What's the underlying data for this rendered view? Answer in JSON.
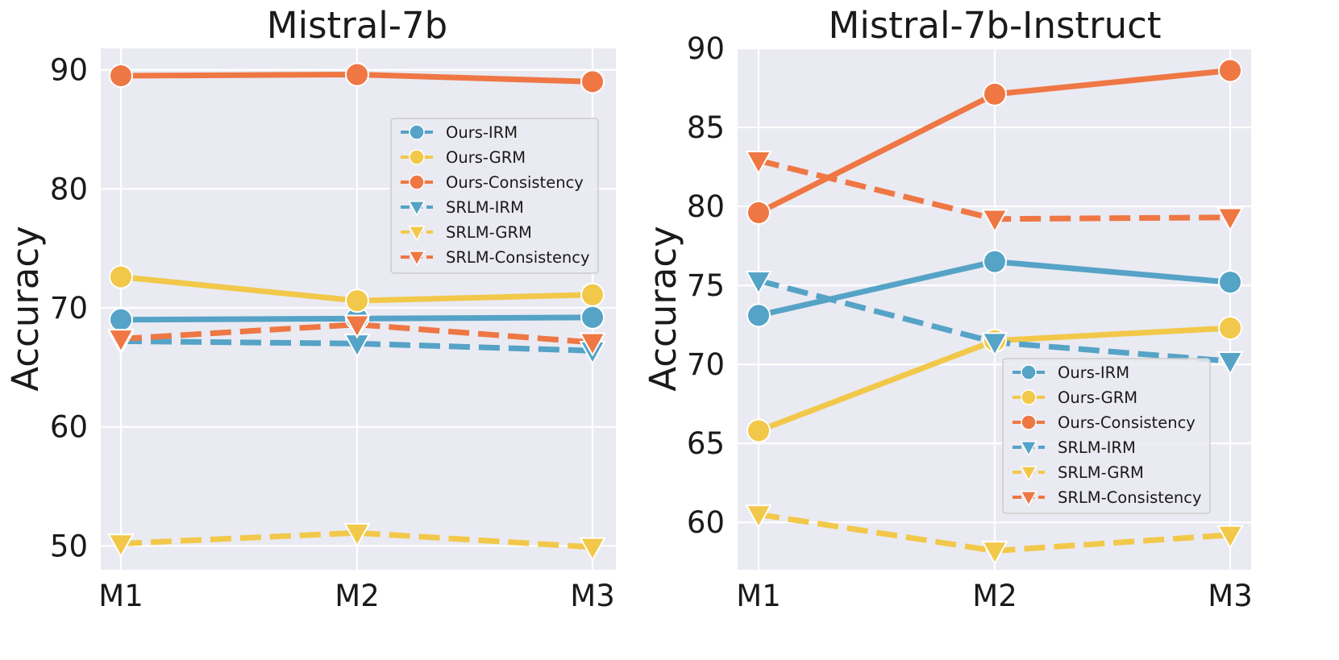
{
  "chart_data": [
    {
      "type": "line",
      "title": "Mistral-7b",
      "xlabel": "",
      "ylabel": "Accuracy",
      "categories": [
        "M1",
        "M2",
        "M3"
      ],
      "ylim": [
        48,
        91.8
      ],
      "yticks": [
        50,
        60,
        70,
        80,
        90
      ],
      "grid": true,
      "legend_position": "center-right",
      "series": [
        {
          "name": "Ours-IRM",
          "values": [
            69.0,
            69.1,
            69.2
          ],
          "color": "#55a3c6",
          "linestyle": "solid",
          "marker": "circle"
        },
        {
          "name": "Ours-GRM",
          "values": [
            72.6,
            70.6,
            71.1
          ],
          "color": "#f2c84b",
          "linestyle": "solid",
          "marker": "circle"
        },
        {
          "name": "Ours-Consistency",
          "values": [
            89.5,
            89.6,
            89.0
          ],
          "color": "#ee7744",
          "linestyle": "solid",
          "marker": "circle"
        },
        {
          "name": "SRLM-IRM",
          "values": [
            67.2,
            67.0,
            66.4
          ],
          "color": "#55a3c6",
          "linestyle": "dashed",
          "marker": "triangle-down"
        },
        {
          "name": "SRLM-GRM",
          "values": [
            50.2,
            51.1,
            49.9
          ],
          "color": "#f2c84b",
          "linestyle": "dashed",
          "marker": "triangle-down"
        },
        {
          "name": "SRLM-Consistency",
          "values": [
            67.4,
            68.6,
            67.1
          ],
          "color": "#ee7744",
          "linestyle": "dashed",
          "marker": "triangle-down"
        }
      ]
    },
    {
      "type": "line",
      "title": "Mistral-7b-Instruct",
      "xlabel": "",
      "ylabel": "Accuracy",
      "categories": [
        "M1",
        "M2",
        "M3"
      ],
      "ylim": [
        57.0,
        90.0
      ],
      "yticks": [
        60,
        65,
        70,
        75,
        80,
        85,
        90
      ],
      "grid": true,
      "legend_position": "lower-right",
      "series": [
        {
          "name": "Ours-IRM",
          "values": [
            73.1,
            76.5,
            75.2
          ],
          "color": "#55a3c6",
          "linestyle": "solid",
          "marker": "circle"
        },
        {
          "name": "Ours-GRM",
          "values": [
            65.8,
            71.5,
            72.3
          ],
          "color": "#f2c84b",
          "linestyle": "solid",
          "marker": "circle"
        },
        {
          "name": "Ours-Consistency",
          "values": [
            79.6,
            87.1,
            88.6
          ],
          "color": "#ee7744",
          "linestyle": "solid",
          "marker": "circle"
        },
        {
          "name": "SRLM-IRM",
          "values": [
            75.3,
            71.4,
            70.2
          ],
          "color": "#55a3c6",
          "linestyle": "dashed",
          "marker": "triangle-down"
        },
        {
          "name": "SRLM-GRM",
          "values": [
            60.5,
            58.2,
            59.2
          ],
          "color": "#f2c84b",
          "linestyle": "dashed",
          "marker": "triangle-down"
        },
        {
          "name": "SRLM-Consistency",
          "values": [
            82.9,
            79.2,
            79.3
          ],
          "color": "#ee7744",
          "linestyle": "dashed",
          "marker": "triangle-down"
        }
      ]
    }
  ]
}
